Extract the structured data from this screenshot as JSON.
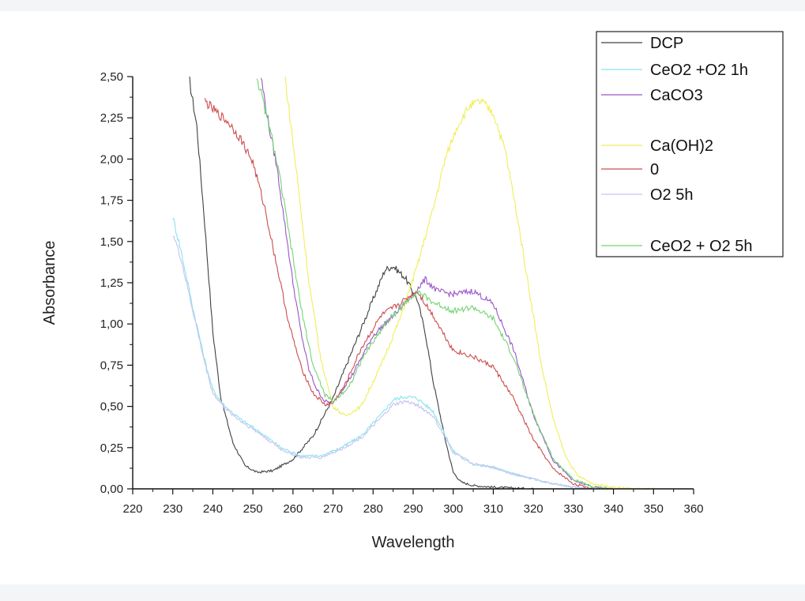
{
  "chart_data": {
    "type": "line",
    "xlabel": "Wavelength",
    "ylabel": "Absorbance",
    "xlim": [
      220,
      360
    ],
    "ylim": [
      0,
      2.5
    ],
    "x_ticks": [
      "220",
      "230",
      "240",
      "250",
      "260",
      "270",
      "280",
      "290",
      "300",
      "310",
      "320",
      "330",
      "340",
      "350",
      "360"
    ],
    "y_ticks": [
      "0,00",
      "0,25",
      "0,50",
      "0,75",
      "1,00",
      "1,25",
      "1,50",
      "1,75",
      "2,00",
      "2,25",
      "2,50"
    ],
    "legend_position": "top-right",
    "series": [
      {
        "name": "DCP",
        "color": "#404040",
        "x": [
          234,
          236,
          238,
          240,
          242,
          245,
          248,
          251,
          255,
          260,
          265,
          270,
          275,
          280,
          283,
          285,
          288,
          291,
          293,
          295,
          298,
          300,
          302,
          305,
          310,
          315,
          320
        ],
        "y": [
          2.5,
          2.2,
          1.6,
          0.95,
          0.55,
          0.28,
          0.14,
          0.1,
          0.11,
          0.18,
          0.32,
          0.55,
          0.85,
          1.15,
          1.33,
          1.35,
          1.28,
          1.15,
          0.95,
          0.65,
          0.3,
          0.1,
          0.04,
          0.02,
          0.01,
          0.005,
          0.0
        ]
      },
      {
        "name": "CeO2 +O2 1h",
        "color": "#88e4ec",
        "x": [
          230,
          232,
          235,
          238,
          240,
          243,
          247,
          252,
          257,
          262,
          267,
          272,
          277,
          282,
          285,
          288,
          291,
          295,
          300,
          305,
          310,
          315,
          320,
          325,
          330,
          335
        ],
        "y": [
          1.65,
          1.45,
          1.1,
          0.78,
          0.6,
          0.5,
          0.42,
          0.34,
          0.25,
          0.2,
          0.2,
          0.25,
          0.32,
          0.45,
          0.54,
          0.56,
          0.55,
          0.47,
          0.23,
          0.15,
          0.13,
          0.09,
          0.06,
          0.03,
          0.01,
          0.0
        ]
      },
      {
        "name": "CaCO3",
        "color": "#9a55c8",
        "x": [
          252,
          254,
          256,
          258,
          260,
          262,
          264,
          266,
          268,
          270,
          275,
          280,
          285,
          290,
          293,
          296,
          300,
          305,
          310,
          315,
          320,
          325,
          330,
          335,
          340
        ],
        "y": [
          2.5,
          2.2,
          1.95,
          1.6,
          1.25,
          0.95,
          0.72,
          0.6,
          0.53,
          0.52,
          0.7,
          0.93,
          1.05,
          1.18,
          1.27,
          1.2,
          1.18,
          1.2,
          1.12,
          0.85,
          0.45,
          0.17,
          0.05,
          0.01,
          0.0
        ]
      },
      {
        "name": "Ca(OH)2",
        "color": "#f0ee5a",
        "x": [
          258,
          261,
          264,
          267,
          270,
          273,
          277,
          282,
          287,
          291,
          295,
          298,
          301,
          304,
          307,
          310,
          313,
          316,
          319,
          322,
          325,
          328,
          331,
          335,
          340,
          345,
          350
        ],
        "y": [
          2.5,
          1.9,
          1.25,
          0.78,
          0.5,
          0.44,
          0.5,
          0.75,
          1.05,
          1.35,
          1.7,
          2.0,
          2.2,
          2.32,
          2.35,
          2.28,
          2.05,
          1.65,
          1.2,
          0.75,
          0.42,
          0.2,
          0.08,
          0.03,
          0.01,
          0.0,
          0.0
        ]
      },
      {
        "name": "0",
        "color": "#cc4c4c",
        "x": [
          238,
          241,
          244,
          247,
          250,
          253,
          256,
          259,
          262,
          265,
          268,
          270,
          273,
          277,
          282,
          287,
          291,
          295,
          300,
          305,
          310,
          315,
          320,
          325,
          330,
          335
        ],
        "y": [
          2.35,
          2.28,
          2.22,
          2.12,
          1.98,
          1.7,
          1.35,
          1.0,
          0.74,
          0.58,
          0.51,
          0.52,
          0.63,
          0.85,
          1.05,
          1.13,
          1.2,
          1.05,
          0.84,
          0.8,
          0.74,
          0.55,
          0.3,
          0.12,
          0.03,
          0.0
        ]
      },
      {
        "name": "O2 5h",
        "color": "#c7c3f2",
        "x": [
          230,
          232,
          235,
          238,
          240,
          243,
          247,
          252,
          257,
          262,
          267,
          272,
          277,
          282,
          285,
          288,
          291,
          295,
          300,
          305,
          310,
          315,
          320,
          325,
          330,
          335
        ],
        "y": [
          1.55,
          1.4,
          1.08,
          0.76,
          0.58,
          0.49,
          0.41,
          0.33,
          0.24,
          0.19,
          0.19,
          0.24,
          0.31,
          0.43,
          0.51,
          0.53,
          0.51,
          0.44,
          0.22,
          0.15,
          0.13,
          0.09,
          0.06,
          0.03,
          0.01,
          0.0
        ]
      },
      {
        "name": "CeO2 + O2 5h",
        "color": "#72d472",
        "x": [
          251,
          253,
          255,
          257,
          259,
          262,
          265,
          268,
          270,
          274,
          278,
          283,
          287,
          291,
          295,
          300,
          305,
          310,
          315,
          320,
          325,
          330,
          335,
          340
        ],
        "y": [
          2.5,
          2.3,
          2.1,
          1.85,
          1.55,
          1.1,
          0.75,
          0.57,
          0.53,
          0.62,
          0.82,
          1.0,
          1.1,
          1.2,
          1.13,
          1.08,
          1.1,
          1.03,
          0.8,
          0.45,
          0.18,
          0.06,
          0.01,
          0.0
        ]
      }
    ]
  }
}
